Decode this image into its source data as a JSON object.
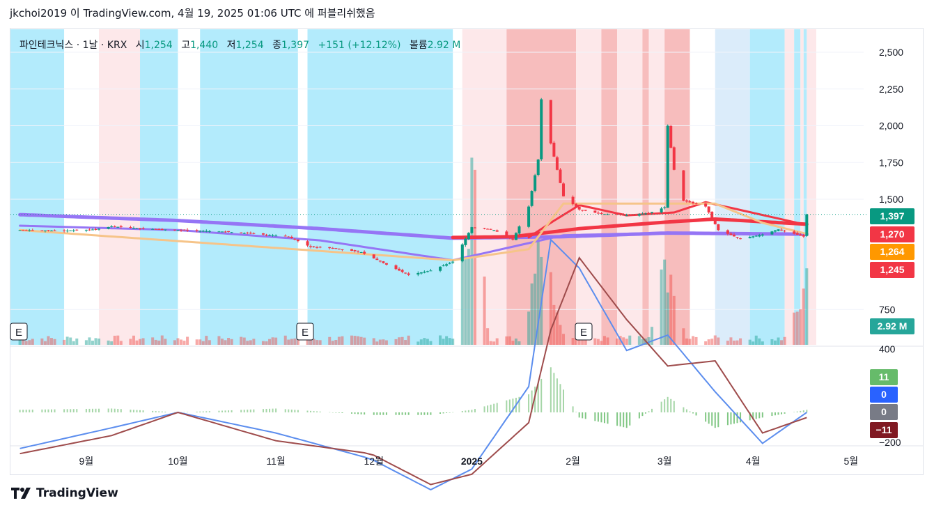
{
  "header": {
    "published_line": "jkchoi2019 이 TradingView.com, 4월 19, 2025 01:06 UTC 에 퍼블리쉬했음"
  },
  "legend": {
    "symbol": "파인테크닉스",
    "interval": "1날",
    "exchange": "KRX",
    "open_label": "시",
    "open_value": "1,254",
    "high_label": "고",
    "high_value": "1,440",
    "low_label": "저",
    "low_value": "1,254",
    "close_label": "종",
    "close_value": "1,397",
    "change": "+151 (+12.12%)",
    "volume_label": "볼륨",
    "volume_value": "2.92 M"
  },
  "price_badges": [
    {
      "text": "1,397",
      "value": 1397,
      "color": "#089981"
    },
    {
      "text": "1,270",
      "value": 1270,
      "color": "#f23645"
    },
    {
      "text": "1,264",
      "value": 1264,
      "color": "#ff9800"
    },
    {
      "text": "1,245",
      "value": 1245,
      "color": "#f23645"
    }
  ],
  "volume_badge": {
    "text": "2.92 M",
    "color": "#26a69a"
  },
  "macd_badges": [
    {
      "text": "11",
      "color": "#66bb6a"
    },
    {
      "text": "0",
      "color": "#2962ff"
    },
    {
      "text": "0",
      "color": "#787b86"
    },
    {
      "text": "−11",
      "color": "#801922"
    }
  ],
  "earnings_markers": [
    "E",
    "E",
    "E"
  ],
  "footer": {
    "brand": "TradingView"
  },
  "chart_data": [
    {
      "type": "candlestick",
      "symbol": "파인테크닉스",
      "interval": "1날",
      "y_axis": {
        "ticks": [
          "2,500",
          "2,250",
          "2,000",
          "1,750",
          "1,500",
          "750"
        ],
        "tick_values": [
          2500,
          2250,
          2000,
          1750,
          1500,
          750
        ]
      },
      "x_axis": {
        "ticks": [
          "9월",
          "10월",
          "11월",
          "12월",
          "2025",
          "2월",
          "3월",
          "4월",
          "5월"
        ]
      },
      "last_price": 1397,
      "anchors": [
        [
          "2024-08-12",
          1290
        ],
        [
          "2024-08-26",
          1285
        ],
        [
          "2024-09-05",
          1295
        ],
        [
          "2024-09-10",
          1315
        ],
        [
          "2024-09-20",
          1300
        ],
        [
          "2024-10-01",
          1290
        ],
        [
          "2024-10-15",
          1280
        ],
        [
          "2024-10-25",
          1265
        ],
        [
          "2024-11-05",
          1245
        ],
        [
          "2024-11-12",
          1175
        ],
        [
          "2024-11-20",
          1165
        ],
        [
          "2024-11-28",
          1140
        ],
        [
          "2024-12-06",
          1055
        ],
        [
          "2024-12-13",
          985
        ],
        [
          "2024-12-20",
          1015
        ],
        [
          "2024-12-27",
          1075
        ],
        [
          "2025-01-02",
          1310
        ],
        [
          "2025-01-09",
          1290
        ],
        [
          "2025-01-15",
          1225
        ],
        [
          "2025-01-20",
          1450
        ],
        [
          "2025-01-23",
          1770
        ],
        [
          "2025-01-24",
          2180
        ],
        [
          "2025-01-27",
          1880
        ],
        [
          "2025-01-31",
          1520
        ],
        [
          "2025-02-05",
          1430
        ],
        [
          "2025-02-12",
          1400
        ],
        [
          "2025-02-20",
          1390
        ],
        [
          "2025-02-27",
          1405
        ],
        [
          "2025-03-04",
          1445
        ],
        [
          "2025-03-05",
          2000
        ],
        [
          "2025-03-07",
          1700
        ],
        [
          "2025-03-10",
          1490
        ],
        [
          "2025-03-17",
          1450
        ],
        [
          "2025-03-21",
          1290
        ],
        [
          "2025-03-28",
          1230
        ],
        [
          "2025-04-04",
          1260
        ],
        [
          "2025-04-09",
          1295
        ],
        [
          "2025-04-14",
          1265
        ],
        [
          "2025-04-17",
          1246
        ],
        [
          "2025-04-18",
          1397
        ]
      ],
      "moving_averages": [
        {
          "color": "#9575f5",
          "width": 5,
          "points": [
            [
              "2024-08-12",
              1395
            ],
            [
              "2024-10-01",
              1355
            ],
            [
              "2024-11-15",
              1300
            ],
            [
              "2024-12-27",
              1235
            ],
            [
              "2025-01-31",
              1245
            ],
            [
              "2025-03-05",
              1270
            ],
            [
              "2025-04-18",
              1262
            ]
          ]
        },
        {
          "color": "#9575f5",
          "width": 3,
          "points": [
            [
              "2024-08-12",
              1320
            ],
            [
              "2024-10-01",
              1290
            ],
            [
              "2024-11-15",
              1220
            ],
            [
              "2024-12-27",
              1085
            ],
            [
              "2025-01-31",
              1255
            ],
            [
              "2025-03-05",
              1272
            ],
            [
              "2025-04-18",
              1264
            ]
          ]
        },
        {
          "color": "#f23645",
          "width": 5,
          "points": [
            [
              "2024-12-27",
              1240
            ],
            [
              "2025-01-15",
              1245
            ],
            [
              "2025-02-05",
              1300
            ],
            [
              "2025-03-05",
              1345
            ],
            [
              "2025-03-20",
              1365
            ],
            [
              "2025-04-18",
              1330
            ]
          ]
        },
        {
          "color": "#f23645",
          "width": 3,
          "points": [
            [
              "2025-01-20",
              1240
            ],
            [
              "2025-01-27",
              1340
            ],
            [
              "2025-02-05",
              1460
            ],
            [
              "2025-02-20",
              1390
            ],
            [
              "2025-03-07",
              1410
            ],
            [
              "2025-03-17",
              1480
            ],
            [
              "2025-04-18",
              1325
            ]
          ]
        },
        {
          "color": "#f6c489",
          "width": 3,
          "points": [
            [
              "2024-08-12",
              1290
            ],
            [
              "2024-12-27",
              1085
            ],
            [
              "2025-01-20",
              1160
            ],
            [
              "2025-01-31",
              1470
            ],
            [
              "2025-03-20",
              1470
            ],
            [
              "2025-04-04",
              1340
            ],
            [
              "2025-04-18",
              1264
            ]
          ]
        }
      ]
    },
    {
      "type": "bar",
      "name": "볼륨",
      "last_value": "2.92 M",
      "relative_levels": [
        [
          "2025-01-02",
          0.6
        ],
        [
          "2025-01-23",
          0.25
        ],
        [
          "2025-01-24",
          0.55
        ],
        [
          "2025-01-27",
          0.2
        ],
        [
          "2025-03-05",
          0.3
        ],
        [
          "2025-04-18",
          0.27
        ]
      ]
    },
    {
      "type": "line",
      "name": "MACD",
      "y_axis": {
        "ticks": [
          "400",
          "−200"
        ],
        "tick_values": [
          400,
          -200
        ]
      },
      "series": [
        {
          "color": "#5b8dee",
          "points": [
            [
              "2024-08-12",
              -70
            ],
            [
              "2024-09-10",
              -30
            ],
            [
              "2024-10-01",
              0
            ],
            [
              "2024-11-01",
              -40
            ],
            [
              "2024-12-01",
              -90
            ],
            [
              "2024-12-20",
              -150
            ],
            [
              "2025-01-02",
              -110
            ],
            [
              "2025-01-20",
              50
            ],
            [
              "2025-01-27",
              335
            ],
            [
              "2025-02-05",
              280
            ],
            [
              "2025-02-20",
              120
            ],
            [
              "2025-03-05",
              150
            ],
            [
              "2025-03-20",
              40
            ],
            [
              "2025-04-04",
              -60
            ],
            [
              "2025-04-18",
              0
            ]
          ]
        },
        {
          "color": "#9e4b4b",
          "points": [
            [
              "2024-08-12",
              -80
            ],
            [
              "2024-09-10",
              -45
            ],
            [
              "2024-10-01",
              0
            ],
            [
              "2024-11-01",
              -55
            ],
            [
              "2024-12-01",
              -80
            ],
            [
              "2024-12-20",
              -140
            ],
            [
              "2025-01-02",
              -120
            ],
            [
              "2025-01-20",
              -20
            ],
            [
              "2025-01-27",
              160
            ],
            [
              "2025-02-05",
              300
            ],
            [
              "2025-02-20",
              180
            ],
            [
              "2025-03-05",
              90
            ],
            [
              "2025-03-20",
              100
            ],
            [
              "2025-04-04",
              -40
            ],
            [
              "2025-04-18",
              -10
            ]
          ]
        }
      ]
    }
  ]
}
